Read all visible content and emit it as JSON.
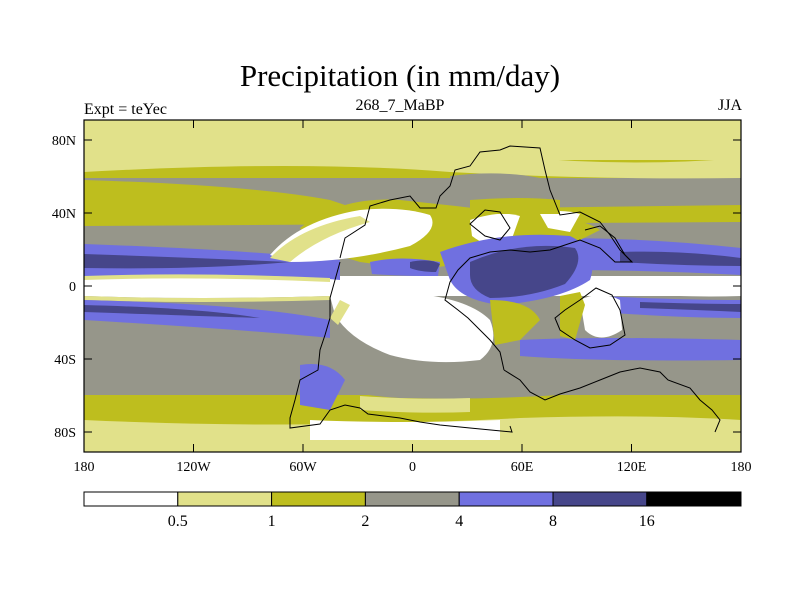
{
  "title": "Precipitation (in mm/day)",
  "left_string": "Expt = teYec",
  "center_string": "268_7_MaBP",
  "right_string": "JJA",
  "lat_ticks": [
    "80N",
    "40N",
    "0",
    "40S",
    "80S"
  ],
  "lon_ticks": [
    "180",
    "120W",
    "60W",
    "0",
    "60E",
    "120E",
    "180"
  ],
  "colorbar": {
    "labels": [
      "0.5",
      "1",
      "2",
      "4",
      "8",
      "16"
    ],
    "colors": [
      "#ffffff",
      "#e1e18a",
      "#bebe1e",
      "#96968a",
      "#7070e0",
      "#46468a",
      "#000000"
    ]
  },
  "chart_data": {
    "type": "heatmap",
    "title": "Precipitation (in mm/day)",
    "variable": "Precipitation",
    "units": "mm/day",
    "season": "JJA",
    "experiment": "teYec",
    "xlabel": "",
    "ylabel": "",
    "xlim": [
      -180,
      180
    ],
    "ylim": [
      -90,
      90
    ],
    "xticks": [
      -180,
      -120,
      -60,
      0,
      60,
      120,
      180
    ],
    "yticks": [
      80,
      40,
      0,
      -40,
      -80
    ],
    "contour_levels": [
      0.5,
      1,
      2,
      4,
      8,
      16
    ]
  }
}
